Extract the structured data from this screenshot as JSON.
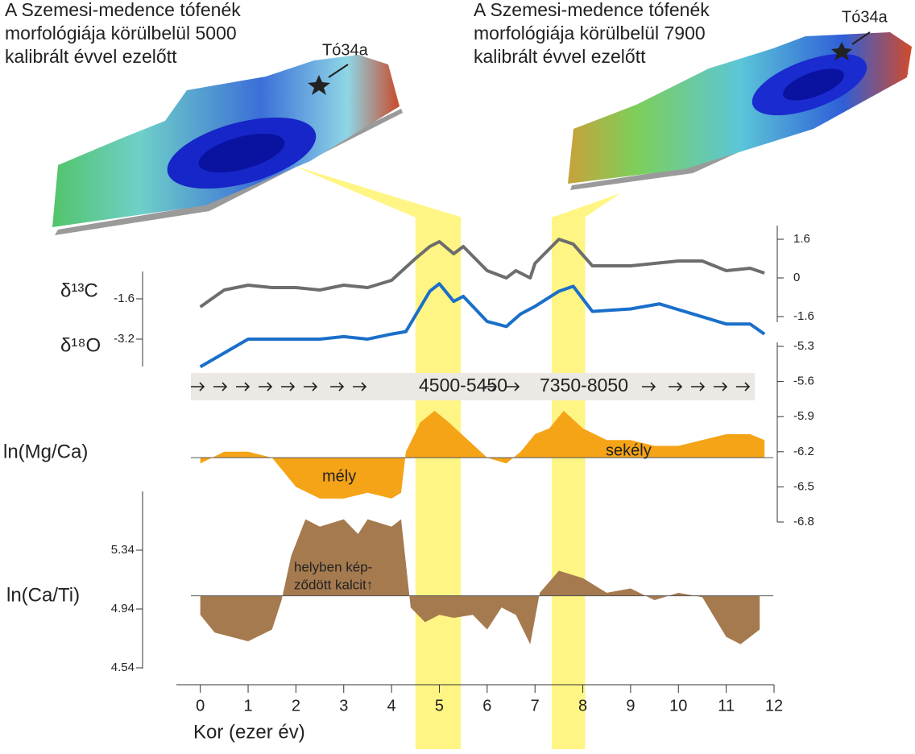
{
  "maps": [
    {
      "title_lines": [
        "A Szemesi-medence tófenék",
        "morfológiája körülbelül 5000",
        "kalibrált évvel ezelőtt"
      ],
      "site": "Tó34a"
    },
    {
      "title_lines": [
        "A Szemesi-medence tófenék",
        "morfológiája körülbelül 7900",
        "kalibrált évvel ezelőtt"
      ],
      "site": "Tó34a"
    }
  ],
  "x_axis": {
    "label": "Kor (ezer év)",
    "xlim": [
      -0.5,
      12
    ],
    "xticks": [
      0,
      1,
      2,
      3,
      4,
      5,
      6,
      7,
      8,
      9,
      10,
      11,
      12
    ]
  },
  "highlight_ranges": [
    {
      "label": "4500-5450",
      "range": [
        4.5,
        5.45
      ]
    },
    {
      "label": "7350-8050",
      "range": [
        7.35,
        8.05
      ]
    }
  ],
  "annotations": {
    "deep": "mély",
    "shallow": "sekély",
    "calcite_lines": [
      "helyben kép-",
      "ződött kalcit↑"
    ]
  },
  "chart_data": [
    {
      "type": "line",
      "ylabel": "δ¹³C",
      "color": "#6d6d6d",
      "axis_side": "right",
      "ylim": [
        -1.6,
        1.6
      ],
      "yticks": [
        -1.6,
        0,
        1.6
      ],
      "x": [
        0,
        0.5,
        1,
        1.5,
        2,
        2.5,
        3,
        3.5,
        4,
        4.5,
        4.8,
        5,
        5.3,
        5.5,
        6,
        6.4,
        6.6,
        6.9,
        7,
        7.5,
        7.8,
        8.2,
        9,
        10,
        10.5,
        11,
        11.5,
        11.8
      ],
      "values": [
        -1.2,
        -0.5,
        -0.3,
        -0.4,
        -0.4,
        -0.5,
        -0.3,
        -0.4,
        -0.1,
        0.8,
        1.3,
        1.5,
        1.0,
        1.3,
        0.3,
        0.0,
        0.3,
        0.0,
        0.6,
        1.6,
        1.4,
        0.5,
        0.5,
        0.7,
        0.7,
        0.3,
        0.4,
        0.2
      ]
    },
    {
      "type": "line",
      "ylabel": "δ¹⁸O",
      "color": "#1a6fc9",
      "axis_side": "left",
      "ylim": [
        -4.5,
        -0.5
      ],
      "yticks": [
        -3.2,
        -1.6
      ],
      "x": [
        0,
        1,
        1.5,
        2,
        2.5,
        3,
        3.5,
        4,
        4.3,
        4.8,
        5,
        5.3,
        5.5,
        6,
        6.4,
        6.7,
        7,
        7.5,
        7.8,
        8.2,
        9,
        9.6,
        10.3,
        11,
        11.5,
        11.8
      ],
      "values": [
        -4.3,
        -3.2,
        -3.2,
        -3.2,
        -3.2,
        -3.1,
        -3.2,
        -3.0,
        -2.9,
        -1.3,
        -1.0,
        -1.7,
        -1.5,
        -2.5,
        -2.7,
        -2.2,
        -1.9,
        -1.3,
        -1.1,
        -2.1,
        -2.0,
        -1.8,
        -2.2,
        -2.6,
        -2.6,
        -3.0
      ]
    },
    {
      "type": "area",
      "ylabel": "ln(Mg/Ca)",
      "color": "#f5a317",
      "axis_side": "right",
      "baseline": -6.25,
      "ylim": [
        -6.8,
        -5.3
      ],
      "yticks": [
        -6.8,
        -6.5,
        -6.2,
        -5.9,
        -5.6,
        -5.3
      ],
      "x": [
        0,
        0.5,
        1,
        1.5,
        2,
        2.5,
        3,
        3.5,
        4,
        4.2,
        4.3,
        4.6,
        4.9,
        5.2,
        5.6,
        6,
        6.4,
        6.7,
        7,
        7.3,
        7.6,
        8,
        8.5,
        9,
        9.5,
        10,
        10.5,
        11,
        11.5,
        11.8
      ],
      "values": [
        -6.3,
        -6.2,
        -6.2,
        -6.25,
        -6.5,
        -6.6,
        -6.6,
        -6.55,
        -6.6,
        -6.55,
        -6.2,
        -5.95,
        -5.85,
        -5.95,
        -6.1,
        -6.25,
        -6.3,
        -6.2,
        -6.05,
        -6.0,
        -5.85,
        -6.0,
        -6.1,
        -6.1,
        -6.15,
        -6.15,
        -6.1,
        -6.05,
        -6.05,
        -6.1
      ]
    },
    {
      "type": "area",
      "ylabel": "ln(Ca/Ti)",
      "color": "#a57a4f",
      "axis_side": "left",
      "baseline": 5.03,
      "ylim": [
        4.54,
        5.74
      ],
      "yticks": [
        4.54,
        4.94,
        5.34
      ],
      "x": [
        0,
        0.3,
        1,
        1.5,
        1.7,
        1.9,
        2.2,
        2.5,
        3,
        3.3,
        3.5,
        4,
        4.2,
        4.4,
        4.7,
        5,
        5.3,
        5.7,
        6,
        6.3,
        6.6,
        6.9,
        7.1,
        7.5,
        8,
        8.5,
        9,
        9.5,
        10,
        10.5,
        11,
        11.3,
        11.7
      ],
      "values": [
        4.9,
        4.78,
        4.72,
        4.8,
        5.0,
        5.3,
        5.55,
        5.5,
        5.55,
        5.45,
        5.55,
        5.5,
        5.55,
        4.95,
        4.85,
        4.9,
        4.88,
        4.9,
        4.8,
        4.95,
        4.9,
        4.7,
        5.05,
        5.2,
        5.15,
        5.05,
        5.08,
        5.0,
        5.05,
        5.02,
        4.75,
        4.7,
        4.8
      ]
    }
  ]
}
